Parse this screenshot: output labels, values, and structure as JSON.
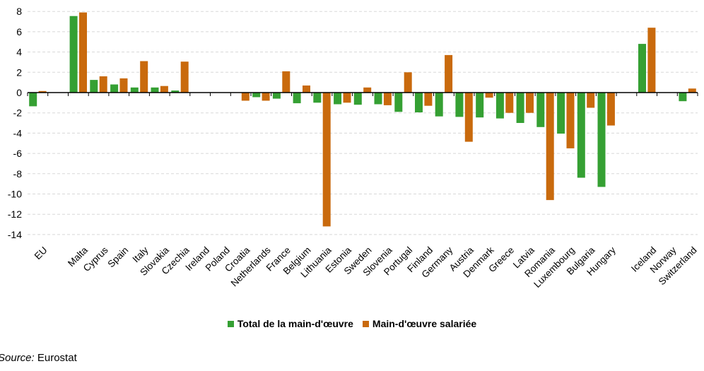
{
  "chart_data": {
    "type": "bar",
    "title": "",
    "xlabel": "",
    "ylabel": "",
    "ylim": [
      -14,
      8
    ],
    "ytick_step": 2,
    "grid": "horizontal-dashed",
    "gridline_color": "#D8D8D8",
    "axis_color": "#000000",
    "legend_position": "bottom-center",
    "categories": [
      "EU",
      "Malta",
      "Cyprus",
      "Spain",
      "Italy",
      "Slovakia",
      "Czechia",
      "Ireland",
      "Poland",
      "Croatia",
      "Netherlands",
      "France",
      "Belgium",
      "Lithuania",
      "Estonia",
      "Sweden",
      "Slovenia",
      "Portugal",
      "Finland",
      "Germany",
      "Austria",
      "Denmark",
      "Greece",
      "Latvia",
      "Romania",
      "Luxembourg",
      "Bulgaria",
      "Hungary",
      "Iceland",
      "Norway",
      "Switzerland"
    ],
    "gap_after_category_indices": [
      0,
      27
    ],
    "series": [
      {
        "name": "Total de la main-d'œuvre",
        "color": "#35A033",
        "values": [
          -1.35,
          7.55,
          1.25,
          0.8,
          0.5,
          0.5,
          0.2,
          null,
          null,
          null,
          -0.45,
          -0.6,
          -1.05,
          -1.0,
          -1.15,
          -1.2,
          -1.15,
          -1.9,
          -1.95,
          -2.35,
          -2.4,
          -2.45,
          -2.55,
          -3.0,
          -3.4,
          -4.05,
          -8.4,
          -9.3,
          4.8,
          null,
          -0.85
        ]
      },
      {
        "name": "Main-d'œuvre salariée",
        "color": "#C96A0D",
        "values": [
          0.15,
          7.9,
          1.6,
          1.4,
          3.1,
          0.65,
          3.05,
          null,
          null,
          -0.8,
          -0.8,
          2.1,
          0.7,
          -13.2,
          -1.0,
          0.5,
          -1.25,
          2.0,
          -1.3,
          3.7,
          -4.85,
          -0.5,
          -2.0,
          -2.0,
          -10.6,
          -5.5,
          -1.5,
          -3.25,
          6.4,
          null,
          0.4
        ]
      }
    ],
    "ytick_labels": [
      "8",
      "6",
      "4",
      "2",
      "0",
      "-2",
      "-4",
      "-6",
      "-8",
      "-10",
      "-12",
      "-14"
    ]
  },
  "source": {
    "prefix": "Source:",
    "text": " Eurostat"
  }
}
